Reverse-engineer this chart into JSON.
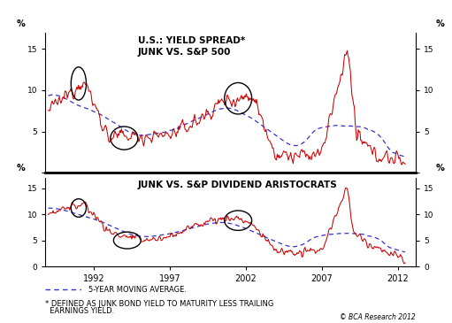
{
  "title_top": "U.S.: YIELD SPREAD*\nJUNK VS. S&P 500",
  "title_bottom": "JUNK VS. S&P DIVIDEND ARISTOCRATS",
  "ylabel": "%",
  "xlim": [
    1988.8,
    2013.2
  ],
  "ylim": [
    0,
    17
  ],
  "yticks": [
    0,
    5,
    10,
    15
  ],
  "xticks": [
    1992,
    1997,
    2002,
    2007,
    2012
  ],
  "footnote1": "5-YEAR MOVING AVERAGE.",
  "footnote2": "* DEFINED AS JUNK BOND YIELD TO MATURITY LESS TRAILING",
  "footnote3": "  EARNINGS YIELD.",
  "copyright": "© BCA Research 2012",
  "background_color": "#ffffff",
  "line_color": "#cc0000",
  "ma_color": "#3333cc",
  "border_color": "#000000"
}
